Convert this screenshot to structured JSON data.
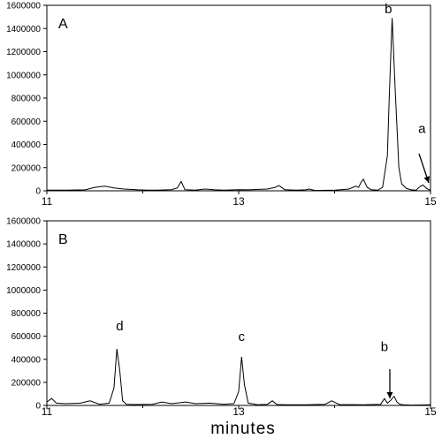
{
  "chart_data": [
    {
      "type": "line",
      "panel_label": "A",
      "xlabel": "",
      "ylabel": "",
      "xlim": [
        11,
        15
      ],
      "ylim": [
        0,
        1600000
      ],
      "yticks": [
        0,
        200000,
        400000,
        600000,
        800000,
        1000000,
        1200000,
        1400000,
        1600000
      ],
      "ytick_labels": [
        "0",
        "200000",
        "400000",
        "600000",
        "800000",
        "1000000",
        "1200000",
        "1400000",
        "1600000"
      ],
      "xticks": [
        11,
        13,
        15
      ],
      "xtick_labels": [
        "11",
        "13",
        "15"
      ],
      "series": [
        {
          "x": [
            11.0,
            11.2,
            11.4,
            11.5,
            11.6,
            11.7,
            11.8,
            11.95,
            12.05,
            12.15,
            12.3,
            12.36,
            12.4,
            12.44,
            12.55,
            12.65,
            12.75,
            12.85,
            13.0,
            13.1,
            13.3,
            13.38,
            13.42,
            13.48,
            13.6,
            13.7,
            13.73,
            13.8,
            14.0,
            14.15,
            14.22,
            14.25,
            14.28,
            14.3,
            14.34,
            14.38,
            14.45,
            14.5,
            14.55,
            14.57,
            14.6,
            14.63,
            14.67,
            14.7,
            14.75,
            14.8,
            14.85,
            14.88,
            14.92,
            14.96,
            15.0
          ],
          "y": [
            5000,
            5000,
            8000,
            30000,
            40000,
            25000,
            15000,
            8000,
            6000,
            5000,
            10000,
            25000,
            80000,
            10000,
            5000,
            15000,
            8000,
            5000,
            10000,
            8000,
            15000,
            30000,
            45000,
            10000,
            5000,
            8000,
            15000,
            3000,
            5000,
            15000,
            40000,
            30000,
            80000,
            100000,
            30000,
            10000,
            5000,
            30000,
            300000,
            800000,
            1490000,
            900000,
            200000,
            60000,
            20000,
            8000,
            5000,
            30000,
            50000,
            20000,
            5000
          ]
        }
      ],
      "annotations": [
        {
          "text": "b",
          "x": 14.56,
          "y": 1530000
        },
        {
          "text": "a",
          "x": 14.91,
          "y": 500000
        }
      ]
    },
    {
      "type": "line",
      "panel_label": "B",
      "xlabel": "minutes",
      "ylabel": "",
      "xlim": [
        11,
        15
      ],
      "ylim": [
        0,
        1600000
      ],
      "yticks": [
        0,
        200000,
        400000,
        600000,
        800000,
        1000000,
        1200000,
        1400000,
        1600000
      ],
      "ytick_labels": [
        "0",
        "200000",
        "400000",
        "600000",
        "800000",
        "1000000",
        "1200000",
        "1400000",
        "1600000"
      ],
      "xticks": [
        11,
        13,
        15
      ],
      "xtick_labels": [
        "11",
        "13",
        "15"
      ],
      "series": [
        {
          "x": [
            11.0,
            11.05,
            11.1,
            11.2,
            11.35,
            11.45,
            11.55,
            11.65,
            11.7,
            11.73,
            11.76,
            11.79,
            11.83,
            11.9,
            12.1,
            12.2,
            12.3,
            12.45,
            12.55,
            12.7,
            12.85,
            12.95,
            13.0,
            13.03,
            13.06,
            13.1,
            13.2,
            13.3,
            13.35,
            13.4,
            13.5,
            13.7,
            13.9,
            13.97,
            14.05,
            14.3,
            14.48,
            14.52,
            14.55,
            14.58,
            14.62,
            14.65,
            14.68,
            14.72,
            14.8,
            15.0
          ],
          "y": [
            30000,
            60000,
            20000,
            15000,
            20000,
            40000,
            10000,
            20000,
            150000,
            490000,
            300000,
            40000,
            10000,
            8000,
            10000,
            30000,
            15000,
            30000,
            15000,
            20000,
            10000,
            15000,
            120000,
            420000,
            180000,
            20000,
            5000,
            10000,
            40000,
            8000,
            5000,
            5000,
            10000,
            40000,
            8000,
            5000,
            10000,
            60000,
            20000,
            40000,
            80000,
            30000,
            10000,
            5000,
            3000,
            5000
          ]
        }
      ],
      "annotations": [
        {
          "text": "d",
          "x": 11.76,
          "y": 650000
        },
        {
          "text": "c",
          "x": 13.03,
          "y": 560000
        },
        {
          "text": "b",
          "x": 14.52,
          "y": 470000
        }
      ]
    }
  ]
}
